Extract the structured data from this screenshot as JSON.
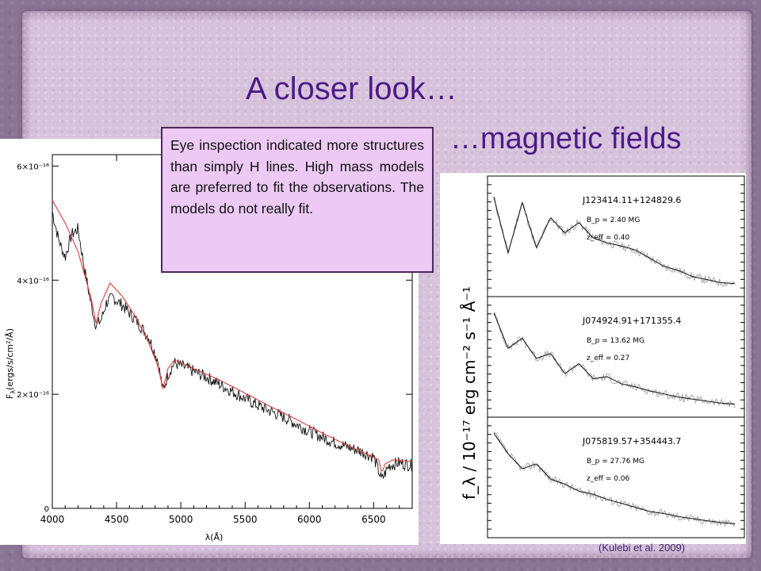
{
  "slide": {
    "title": "A closer look…",
    "subtitle": "…magnetic fields",
    "callout_text": "Eye inspection indicated more structures than simply H lines. High mass models are preferred to fit the observations. The models do not really fit.",
    "citation": "(Kulebi et al. 2009)"
  },
  "colors": {
    "title": "#4b1a88",
    "callout_bg": "#eccaf3",
    "paper": "#d7c2dc",
    "model_line": "#e03a3a"
  },
  "left_figure": {
    "xlabel": "λ(Å)",
    "ylabel": "F",
    "ylabel_sub": "λ",
    "ylabel_tail": "(ergs/s/cm²/Å)",
    "xticks": [
      "4000",
      "4500",
      "5000",
      "5500",
      "6000",
      "6500"
    ],
    "yticks": [
      "0",
      "2×10⁻¹⁶",
      "4×10⁻¹⁶",
      "6×10⁻¹⁶"
    ]
  },
  "right_figure": {
    "ylabel": "f_λ / 10⁻¹⁷ erg cm⁻² s⁻¹ Å⁻¹",
    "panels": [
      {
        "name": "J123414.11+124829.6",
        "b": "B_p = 2.40 MG",
        "z": "z_eff = 0.40"
      },
      {
        "name": "J074924.91+171355.4",
        "b": "B_p = 13.62 MG",
        "z": "z_eff = 0.27"
      },
      {
        "name": "J075819.57+354443.7",
        "b": "B_p = 27.76 MG",
        "z": "z_eff = 0.06"
      }
    ]
  },
  "chart_data": [
    {
      "type": "line",
      "xlabel": "λ(Å)",
      "ylabel": "Fλ(ergs/s/cm²/Å)",
      "xlim": [
        4000,
        6800
      ],
      "ylim": [
        0,
        6.2e-16
      ],
      "series": [
        {
          "x": [
            4000,
            4050,
            4100,
            4150,
            4200,
            4250,
            4300,
            4340,
            4380,
            4420,
            4470,
            4550,
            4650,
            4750,
            4820,
            4861,
            4900,
            4950,
            5000,
            5200,
            5400,
            5600,
            5800,
            6000,
            6200,
            6400,
            6500,
            6563,
            6620,
            6700,
            6800
          ],
          "values": [
            5.2e-16,
            4.7e-16,
            4.4e-16,
            4.8e-16,
            4.9e-16,
            4.2e-16,
            3.6e-16,
            3.2e-16,
            3.3e-16,
            3.6e-16,
            3.7e-16,
            3.55e-16,
            3.3e-16,
            3e-16,
            2.6e-16,
            2.05e-16,
            2.35e-16,
            2.55e-16,
            2.5e-16,
            2.3e-16,
            2.05e-16,
            1.8e-16,
            1.6e-16,
            1.35e-16,
            1.15e-16,
            1e-16,
            9e-17,
            5e-17,
            7.5e-17,
            8e-17,
            7.5e-17
          ]
        },
        {
          "x": [
            4000,
            4100,
            4200,
            4300,
            4340,
            4380,
            4450,
            4550,
            4650,
            4750,
            4820,
            4861,
            4900,
            4950,
            5100,
            5300,
            5500,
            5700,
            5900,
            6100,
            6300,
            6450,
            6540,
            6563,
            6590,
            6650,
            6800
          ],
          "values": [
            5.4e-16,
            5e-16,
            4.5e-16,
            3.7e-16,
            3.25e-16,
            3.6e-16,
            3.95e-16,
            3.7e-16,
            3.35e-16,
            2.9e-16,
            2.5e-16,
            2.1e-16,
            2.45e-16,
            2.6e-16,
            2.45e-16,
            2.25e-16,
            2.02e-16,
            1.78e-16,
            1.56e-16,
            1.32e-16,
            1.1e-16,
            9.5e-17,
            8.5e-17,
            6.2e-17,
            7.8e-17,
            8.5e-17,
            8.2e-17
          ]
        }
      ]
    },
    {
      "type": "line",
      "ylabel": "f_λ / 10⁻¹⁷ erg cm⁻² s⁻¹ Å⁻¹",
      "series": [
        {
          "name": "J123414.11+124829.6",
          "values": [
            0.9,
            0.35,
            0.85,
            0.4,
            0.7,
            0.55,
            0.65,
            0.5,
            0.45,
            0.42,
            0.38,
            0.3,
            0.22,
            0.18,
            0.12,
            0.09,
            0.06,
            0.05
          ]
        },
        {
          "name": "J074924.91+171355.4",
          "values": [
            0.95,
            0.6,
            0.7,
            0.5,
            0.55,
            0.35,
            0.45,
            0.3,
            0.32,
            0.25,
            0.22,
            0.18,
            0.15,
            0.12,
            0.1,
            0.08,
            0.06,
            0.05
          ]
        },
        {
          "name": "J075819.57+354443.7",
          "values": [
            0.95,
            0.75,
            0.6,
            0.65,
            0.5,
            0.45,
            0.38,
            0.35,
            0.3,
            0.26,
            0.22,
            0.18,
            0.16,
            0.13,
            0.11,
            0.09,
            0.07,
            0.06
          ]
        }
      ]
    }
  ]
}
